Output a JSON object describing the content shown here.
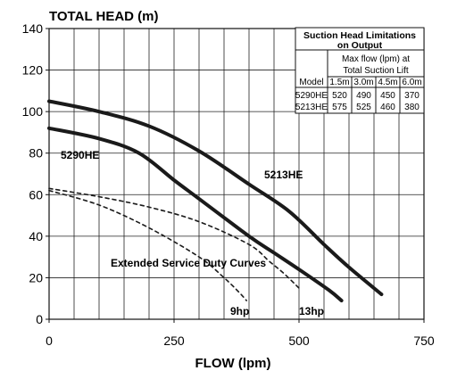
{
  "chart_data": {
    "type": "line",
    "title": "TOTAL HEAD (m)",
    "xlabel": "FLOW (lpm)",
    "ylabel": "",
    "xlim": [
      0,
      750
    ],
    "ylim": [
      0,
      140
    ],
    "x_ticks": [
      "0",
      "250",
      "500",
      "750"
    ],
    "y_ticks": [
      "0",
      "20",
      "40",
      "60",
      "80",
      "100",
      "120",
      "140"
    ],
    "grid": true,
    "series": [
      {
        "name": "5213HE",
        "style": "solid",
        "x": [
          0,
          100,
          200,
          300,
          400,
          480,
          550,
          600,
          665
        ],
        "y": [
          105,
          100,
          93,
          81,
          65,
          52,
          36,
          25,
          12
        ]
      },
      {
        "name": "5290HE",
        "style": "solid",
        "x": [
          0,
          100,
          180,
          250,
          300,
          400,
          450,
          500,
          560,
          585
        ],
        "y": [
          92,
          87,
          80,
          67,
          58,
          40,
          32,
          24,
          14,
          9
        ]
      },
      {
        "name": "13hp",
        "style": "dashed",
        "x": [
          0,
          100,
          200,
          300,
          400,
          440,
          470,
          500
        ],
        "y": [
          63,
          59,
          54,
          47,
          36,
          28,
          22,
          15
        ]
      },
      {
        "name": "9hp",
        "style": "dashed",
        "x": [
          0,
          100,
          200,
          300,
          350,
          380,
          395
        ],
        "y": [
          62,
          55,
          44,
          30,
          20,
          13,
          9
        ]
      }
    ],
    "annotations": [
      "5290HE",
      "5213HE",
      "Extended Service Duty Curves",
      "9hp",
      "13hp"
    ]
  },
  "table": {
    "title_line1": "Suction Head Limitations",
    "title_line2": "on Output",
    "header1_line1": "Max flow (lpm) at",
    "header1_line2": "Total Suction Lift",
    "model_label": "Model",
    "lifts": [
      "1.5m",
      "3.0m",
      "4.5m",
      "6.0m"
    ],
    "rows": [
      {
        "model": "5290HE",
        "values": [
          "520",
          "490",
          "450",
          "370"
        ]
      },
      {
        "model": "5213HE",
        "values": [
          "575",
          "525",
          "460",
          "380"
        ]
      }
    ]
  },
  "colors": {
    "line": "#1a1a1a",
    "grid": "#222222",
    "background": "#ffffff"
  }
}
